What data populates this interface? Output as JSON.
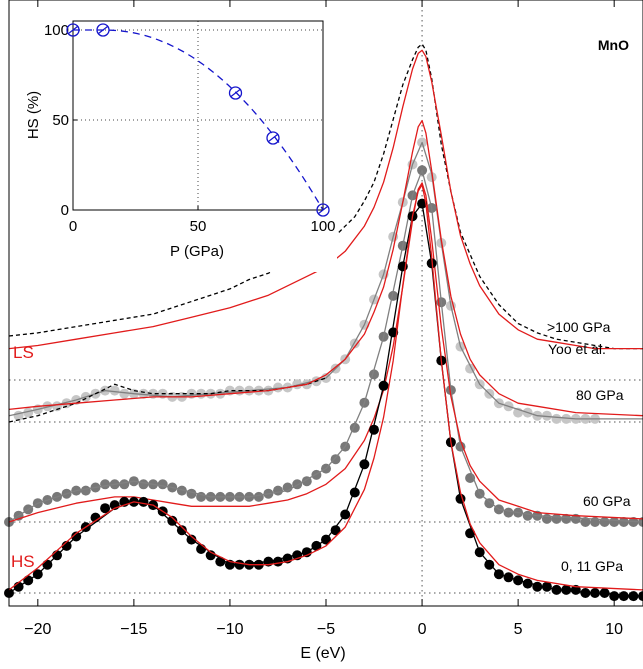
{
  "chart_data": [
    {
      "type": "line",
      "xlabel": "E (eV)",
      "ylabel": "",
      "xlim": [
        -21.5,
        11.5
      ],
      "xticks": [
        -20,
        -15,
        -10,
        -5,
        0,
        5,
        10
      ],
      "tick_labels": [
        "−20",
        "−15",
        "−10",
        "−5",
        "0",
        "5",
        "10"
      ],
      "grid": "dotted",
      "annotations": {
        "sample": "MnO",
        "ls": "LS",
        "hs": "HS",
        "p100": ">100 GPa",
        "yoo": "Yoo et al.",
        "p80": "80 GPa",
        "p60": "60 GPa",
        "p0": "0, 11 GPa"
      },
      "series": [
        {
          "type": "dashed",
          "color": "#000000",
          "x": [
            -21.5,
            -20,
            -18,
            -17,
            -16,
            -15,
            -14,
            -13,
            -12,
            -11,
            -10,
            -9,
            -8,
            -7,
            -6,
            -5,
            -4.5,
            -4,
            -3.5,
            -3,
            -2.5,
            -2,
            -1.5,
            -1,
            -0.5,
            -0.2,
            0,
            0.2,
            0.5,
            1,
            1.5,
            2,
            2.5,
            3,
            4,
            5,
            6,
            7,
            8,
            9,
            10,
            11.5
          ],
          "y": [
            0.14,
            0.15,
            0.17,
            0.18,
            0.19,
            0.2,
            0.21,
            0.23,
            0.25,
            0.27,
            0.29,
            0.32,
            0.34,
            0.37,
            0.4,
            0.44,
            0.46,
            0.49,
            0.52,
            0.57,
            0.63,
            0.72,
            0.83,
            0.94,
            1.02,
            1.06,
            1.07,
            1.05,
            0.96,
            0.75,
            0.6,
            0.47,
            0.4,
            0.33,
            0.24,
            0.18,
            0.15,
            0.13,
            0.12,
            0.11,
            0.1,
            0.1
          ]
        },
        {
          "type": "line",
          "color": "#e11b1b",
          "x": [
            -21.5,
            -20,
            -18,
            -16,
            -14,
            -12,
            -10,
            -8,
            -6,
            -5,
            -4,
            -3,
            -2.5,
            -2,
            -1.5,
            -1,
            -0.5,
            -0.2,
            0,
            0.2,
            0.5,
            1,
            1.5,
            2,
            2.5,
            3,
            4,
            5,
            6,
            7,
            8,
            9,
            10,
            11.5
          ],
          "y": [
            0.1,
            0.11,
            0.13,
            0.15,
            0.17,
            0.2,
            0.23,
            0.27,
            0.33,
            0.36,
            0.41,
            0.49,
            0.55,
            0.63,
            0.74,
            0.87,
            0.99,
            1.04,
            1.05,
            1.03,
            0.95,
            0.78,
            0.6,
            0.46,
            0.37,
            0.3,
            0.21,
            0.16,
            0.13,
            0.12,
            0.11,
            0.1,
            0.1,
            0.1
          ]
        },
        {
          "type": "dots",
          "color": "#c6c6c6",
          "x": [
            -21,
            -20.5,
            -20,
            -19.5,
            -19,
            -18.5,
            -18,
            -17.5,
            -17,
            -16.5,
            -16,
            -15.5,
            -15,
            -14.5,
            -14,
            -13.5,
            -13,
            -12.5,
            -12,
            -11.5,
            -11,
            -10.5,
            -10,
            -9.5,
            -9,
            -8.5,
            -8,
            -7.5,
            -7,
            -6.5,
            -6,
            -5.5,
            -5,
            -4.5,
            -4,
            -3.5,
            -3,
            -2.5,
            -2,
            -1.5,
            -1,
            -0.5,
            0,
            0.5,
            1,
            1.5,
            2,
            2.5,
            3,
            3.5,
            4,
            4.5,
            5,
            5.5,
            6,
            6.5,
            7,
            7.5,
            8,
            8.5,
            9
          ],
          "y": [
            0.02,
            0.03,
            0.04,
            0.05,
            0.05,
            0.06,
            0.07,
            0.08,
            0.09,
            0.1,
            0.1,
            0.09,
            0.09,
            0.09,
            0.09,
            0.09,
            0.08,
            0.08,
            0.09,
            0.09,
            0.09,
            0.09,
            0.1,
            0.1,
            0.1,
            0.1,
            0.1,
            0.11,
            0.11,
            0.12,
            0.12,
            0.13,
            0.14,
            0.17,
            0.2,
            0.25,
            0.31,
            0.39,
            0.47,
            0.59,
            0.7,
            0.82,
            0.89,
            0.78,
            0.57,
            0.37,
            0.24,
            0.17,
            0.12,
            0.09,
            0.06,
            0.05,
            0.03,
            0.03,
            0.02,
            0.02,
            0.01,
            0.01,
            0.01,
            0.01,
            0.01
          ]
        },
        {
          "type": "line",
          "color": "#808080",
          "x": [
            -21.5,
            -20,
            -18,
            -16.5,
            -15,
            -13,
            -11,
            -9,
            -7,
            -5,
            -4,
            -3,
            -2,
            -1.5,
            -1,
            -0.5,
            0,
            0.5,
            1,
            1.5,
            2,
            3,
            4,
            5,
            6,
            8,
            11.5
          ],
          "y": [
            0.02,
            0.04,
            0.07,
            0.1,
            0.09,
            0.08,
            0.09,
            0.1,
            0.11,
            0.14,
            0.2,
            0.31,
            0.47,
            0.59,
            0.7,
            0.82,
            0.89,
            0.79,
            0.57,
            0.37,
            0.24,
            0.12,
            0.06,
            0.04,
            0.02,
            0.01,
            0.01
          ]
        },
        {
          "type": "dashed",
          "color": "#000000",
          "x": [
            -21.5,
            -20,
            -19,
            -18,
            -17,
            -16,
            -15,
            -14,
            -13,
            -12,
            -11,
            -10,
            -9,
            -8,
            -7,
            -6,
            -5
          ],
          "y": [
            0.0,
            0.02,
            0.04,
            0.06,
            0.09,
            0.12,
            0.1,
            0.09,
            0.09,
            0.09,
            0.09,
            0.1,
            0.1,
            0.1,
            0.11,
            0.12,
            0.14
          ]
        },
        {
          "type": "line",
          "color": "#e11b1b",
          "x": [
            -21.5,
            -20,
            -18,
            -16,
            -14,
            -12,
            -10,
            -8,
            -6,
            -5,
            -4,
            -3,
            -2.5,
            -2,
            -1.5,
            -1,
            -0.5,
            -0.2,
            0,
            0.2,
            0.5,
            1,
            1.5,
            2,
            2.5,
            3,
            4,
            5,
            6,
            8,
            11.5
          ],
          "y": [
            0.04,
            0.05,
            0.06,
            0.07,
            0.08,
            0.08,
            0.09,
            0.1,
            0.12,
            0.15,
            0.2,
            0.28,
            0.35,
            0.43,
            0.55,
            0.7,
            0.86,
            0.94,
            0.96,
            0.92,
            0.8,
            0.58,
            0.4,
            0.28,
            0.2,
            0.15,
            0.09,
            0.06,
            0.05,
            0.03,
            0.02
          ]
        },
        {
          "type": "dots",
          "color": "#787878",
          "x": [
            -21.5,
            -21,
            -20.5,
            -20,
            -19.5,
            -19,
            -18.5,
            -18,
            -17.5,
            -17,
            -16.5,
            -16,
            -15.5,
            -15,
            -14.5,
            -14,
            -13.5,
            -13,
            -12.5,
            -12,
            -11.5,
            -11,
            -10.5,
            -10,
            -9.5,
            -9,
            -8.5,
            -8,
            -7.5,
            -7,
            -6.5,
            -6,
            -5.5,
            -5,
            -4.5,
            -4,
            -3.5,
            -3,
            -2.5,
            -2,
            -1.5,
            -1,
            -0.5,
            0,
            0.5,
            1,
            1.5,
            2,
            2.5,
            3,
            3.5,
            4,
            4.5,
            5,
            5.5,
            6,
            6.5,
            7,
            7.5,
            8,
            8.5,
            9,
            9.5,
            10,
            10.5,
            11,
            11.5
          ],
          "y": [
            0.0,
            0.02,
            0.04,
            0.06,
            0.07,
            0.08,
            0.09,
            0.1,
            0.1,
            0.11,
            0.12,
            0.12,
            0.12,
            0.13,
            0.12,
            0.12,
            0.12,
            0.11,
            0.1,
            0.09,
            0.08,
            0.08,
            0.08,
            0.08,
            0.08,
            0.08,
            0.08,
            0.09,
            0.1,
            0.11,
            0.12,
            0.13,
            0.15,
            0.17,
            0.2,
            0.24,
            0.3,
            0.38,
            0.47,
            0.59,
            0.72,
            0.88,
            1.04,
            1.12,
            1.0,
            0.7,
            0.42,
            0.24,
            0.14,
            0.09,
            0.06,
            0.04,
            0.03,
            0.03,
            0.02,
            0.02,
            0.01,
            0.01,
            0.01,
            0.01,
            0.0,
            0.0,
            0.0,
            0.0,
            0.0,
            0.0,
            0.0
          ]
        },
        {
          "type": "line",
          "color": "#808080",
          "x": [
            -21.5,
            -20,
            -18,
            -16,
            -15,
            -13,
            -11,
            -9,
            -7,
            -5,
            -4,
            -3,
            -2,
            -1,
            -0.5,
            0,
            0.5,
            1,
            1.5,
            2,
            3,
            4,
            6,
            11.5
          ],
          "y": [
            0.0,
            0.06,
            0.1,
            0.12,
            0.13,
            0.11,
            0.08,
            0.08,
            0.1,
            0.17,
            0.24,
            0.38,
            0.59,
            0.88,
            1.04,
            1.12,
            1.0,
            0.7,
            0.42,
            0.24,
            0.09,
            0.04,
            0.02,
            0.0
          ]
        },
        {
          "type": "line",
          "color": "#e11b1b",
          "x": [
            -21.5,
            -20,
            -18,
            -16,
            -15,
            -14,
            -13,
            -12,
            -11,
            -10,
            -9,
            -8,
            -7,
            -6,
            -5,
            -4,
            -3,
            -2.5,
            -2,
            -1.5,
            -1,
            -0.5,
            -0.2,
            0,
            0.2,
            0.5,
            1,
            1.5,
            2,
            2.5,
            3,
            4,
            5,
            6,
            8,
            11.5
          ],
          "y": [
            0.0,
            0.03,
            0.06,
            0.08,
            0.08,
            0.07,
            0.06,
            0.05,
            0.05,
            0.05,
            0.05,
            0.06,
            0.07,
            0.09,
            0.12,
            0.17,
            0.26,
            0.33,
            0.42,
            0.56,
            0.75,
            0.96,
            1.06,
            1.08,
            1.04,
            0.9,
            0.62,
            0.4,
            0.26,
            0.18,
            0.13,
            0.07,
            0.05,
            0.03,
            0.02,
            0.01
          ]
        },
        {
          "type": "dots",
          "color": "#000000",
          "x": [
            -21.5,
            -21,
            -20.5,
            -20,
            -19.5,
            -19,
            -18.5,
            -18,
            -17.5,
            -17,
            -16.5,
            -16,
            -15.5,
            -15,
            -14.5,
            -14,
            -13.5,
            -13,
            -12.5,
            -12,
            -11.5,
            -11,
            -10.5,
            -10,
            -9.5,
            -9,
            -8.5,
            -8,
            -7.5,
            -7,
            -6.5,
            -6,
            -5.5,
            -5,
            -4.5,
            -4,
            -3.5,
            -3,
            -2.5,
            -2,
            -1.5,
            -1,
            -0.5,
            0,
            0.5,
            1,
            1.5,
            2,
            2.5,
            3,
            3.5,
            4,
            4.5,
            5,
            5.5,
            6,
            6.5,
            7,
            7.5,
            8,
            8.5,
            9,
            9.5,
            10,
            10.5,
            11,
            11.5
          ],
          "y": [
            0.0,
            0.02,
            0.04,
            0.06,
            0.09,
            0.12,
            0.15,
            0.18,
            0.21,
            0.24,
            0.27,
            0.28,
            0.29,
            0.29,
            0.29,
            0.28,
            0.26,
            0.23,
            0.2,
            0.17,
            0.14,
            0.12,
            0.1,
            0.09,
            0.09,
            0.09,
            0.09,
            0.1,
            0.1,
            0.11,
            0.12,
            0.13,
            0.15,
            0.17,
            0.2,
            0.25,
            0.32,
            0.41,
            0.52,
            0.66,
            0.83,
            1.04,
            1.2,
            1.24,
            1.05,
            0.74,
            0.48,
            0.3,
            0.19,
            0.13,
            0.09,
            0.06,
            0.05,
            0.04,
            0.03,
            0.02,
            0.02,
            0.01,
            0.01,
            0.01,
            0.0,
            0.0,
            0.0,
            -0.01,
            -0.01,
            -0.01,
            -0.01
          ]
        },
        {
          "type": "line",
          "color": "#000000",
          "x": [
            -21.5,
            -20,
            -18,
            -16,
            -15,
            -14,
            -12,
            -10,
            -8,
            -6,
            -5,
            -4,
            -3,
            -2,
            -1,
            -0.5,
            0,
            0.5,
            1,
            1.5,
            2,
            3,
            4,
            5,
            7,
            9,
            11.5
          ],
          "y": [
            0.0,
            0.06,
            0.18,
            0.27,
            0.29,
            0.28,
            0.17,
            0.09,
            0.1,
            0.13,
            0.17,
            0.25,
            0.41,
            0.66,
            1.04,
            1.2,
            1.24,
            1.05,
            0.74,
            0.48,
            0.3,
            0.13,
            0.06,
            0.04,
            0.01,
            0.0,
            -0.01
          ]
        },
        {
          "type": "line",
          "color": "#e11b1b",
          "x": [
            -21.5,
            -20,
            -18,
            -16,
            -15,
            -14,
            -13,
            -12,
            -11,
            -10,
            -9,
            -8,
            -7,
            -6,
            -5,
            -4,
            -3,
            -2.5,
            -2,
            -1.5,
            -1,
            -0.5,
            -0.2,
            0,
            0.2,
            0.5,
            1,
            1.5,
            2,
            2.5,
            3,
            4,
            5,
            6,
            8,
            11.5
          ],
          "y": [
            0.01,
            0.08,
            0.19,
            0.27,
            0.29,
            0.28,
            0.24,
            0.18,
            0.13,
            0.1,
            0.09,
            0.09,
            0.1,
            0.12,
            0.15,
            0.21,
            0.33,
            0.43,
            0.56,
            0.74,
            0.98,
            1.2,
            1.28,
            1.3,
            1.24,
            1.07,
            0.74,
            0.48,
            0.32,
            0.22,
            0.16,
            0.09,
            0.06,
            0.04,
            0.02,
            0.01
          ]
        }
      ]
    },
    {
      "type": "line",
      "xlabel": "P (GPa)",
      "ylabel": "HS (%)",
      "xlim": [
        0,
        100
      ],
      "ylim": [
        0,
        105
      ],
      "xticks": [
        0,
        50,
        100
      ],
      "yticks": [
        0,
        50,
        100
      ],
      "x": [
        0,
        12,
        65,
        80,
        100
      ],
      "y": [
        100,
        100,
        65,
        40,
        0
      ],
      "color": "#1515cc"
    }
  ]
}
